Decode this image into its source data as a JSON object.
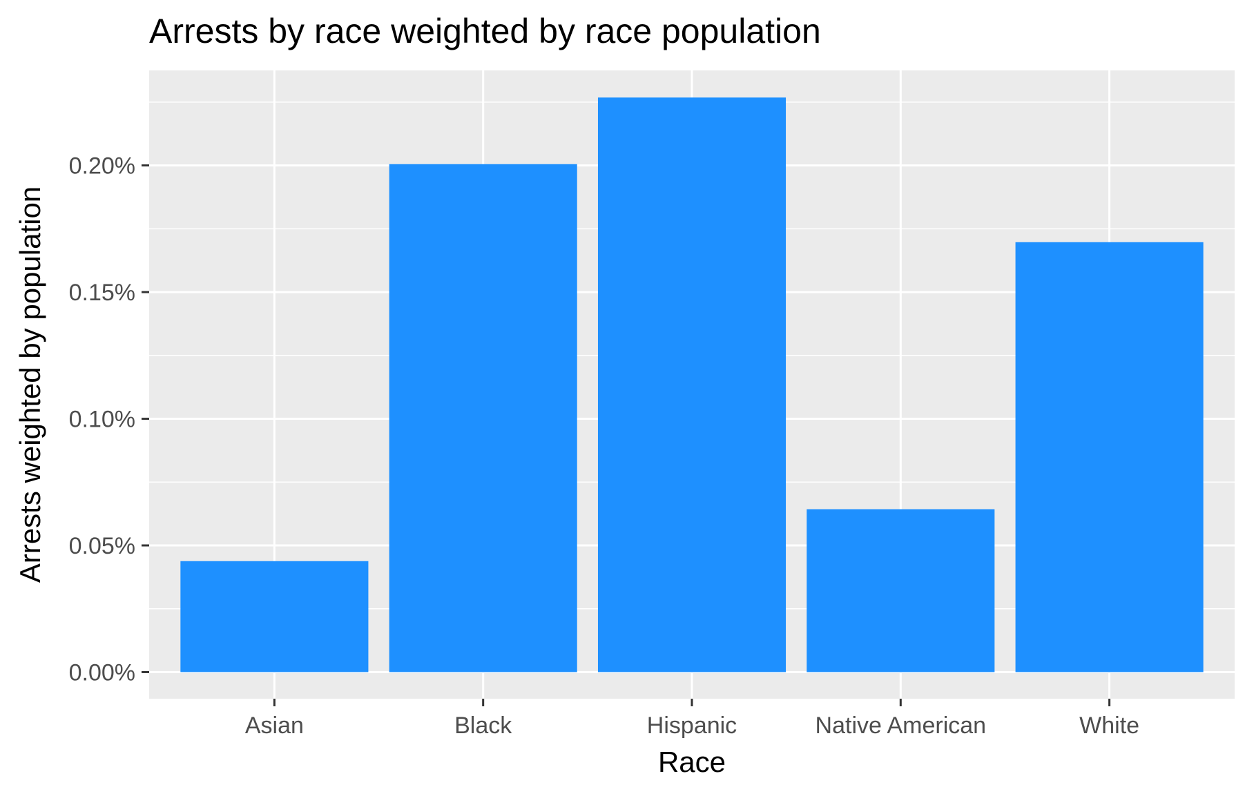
{
  "chart_data": {
    "type": "bar",
    "title": "Arrests by race weighted by race population",
    "xlabel": "Race",
    "ylabel": "Arrests weighted by population",
    "categories": [
      "Asian",
      "Black",
      "Hispanic",
      "Native American",
      "White"
    ],
    "values": [
      0.0438,
      0.2005,
      0.2268,
      0.0643,
      0.1697
    ],
    "value_unit": "percent",
    "ylim": [
      -0.0105,
      0.2375
    ],
    "yticks": [
      0,
      0.05,
      0.1,
      0.15,
      0.2
    ],
    "ytick_labels": [
      "0.00%",
      "0.05%",
      "0.10%",
      "0.15%",
      "0.20%"
    ],
    "grid": true,
    "colors": {
      "bar": "#1E90FF",
      "panel": "#EBEBEB",
      "grid": "#FFFFFF"
    }
  }
}
